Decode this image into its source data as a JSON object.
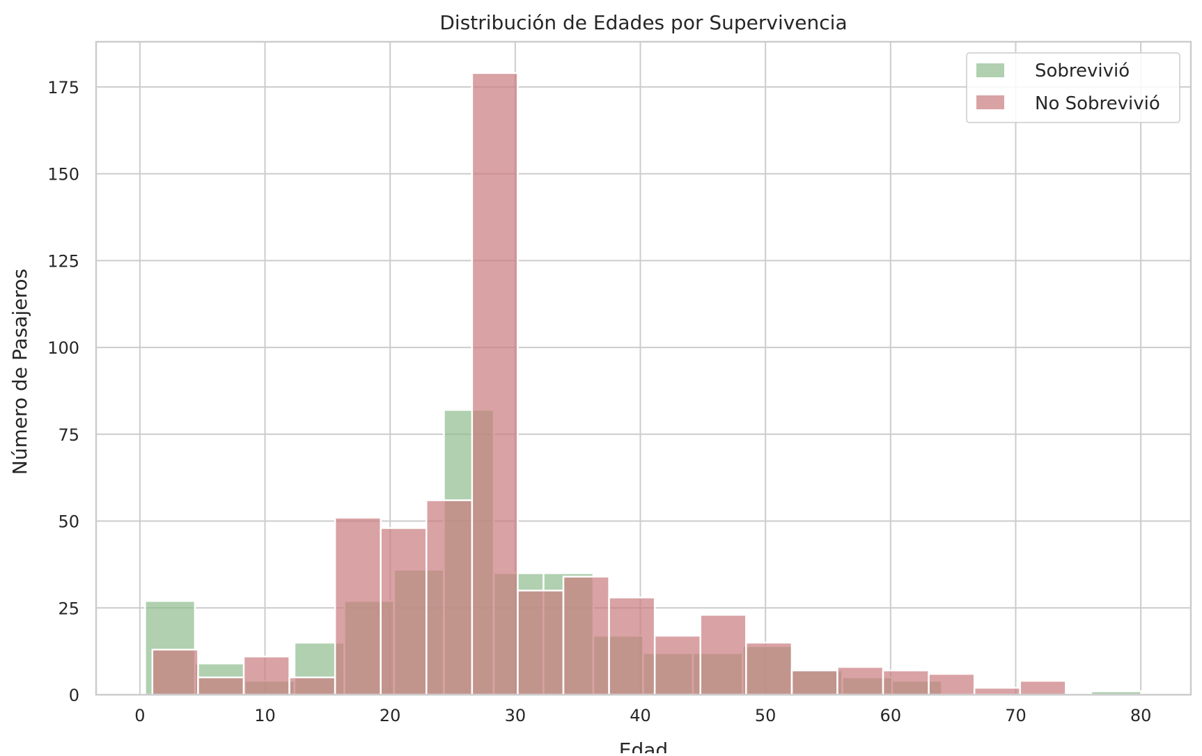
{
  "chart_data": {
    "type": "bar",
    "title": "Distribución de Edades por Supervivencia",
    "xlabel": "Edad",
    "ylabel": "Número de Pasajeros",
    "xlim": [
      -3.5,
      84
    ],
    "ylim": [
      0,
      188
    ],
    "xticks": [
      0,
      10,
      20,
      30,
      40,
      50,
      60,
      70,
      80
    ],
    "yticks": [
      0,
      25,
      50,
      75,
      100,
      125,
      150,
      175
    ],
    "grid": true,
    "legend_position": "top-right",
    "colors": {
      "survived": "#8fbc8f",
      "not_survived": "#c97a7e",
      "grid": "#cccccc",
      "spine": "#cccccc"
    },
    "series": [
      {
        "name": "Sobrevivió",
        "bins": [
          {
            "x0": 0.42,
            "x1": 4.4,
            "count": 27
          },
          {
            "x0": 4.4,
            "x1": 8.38,
            "count": 9
          },
          {
            "x0": 8.38,
            "x1": 12.36,
            "count": 4
          },
          {
            "x0": 12.36,
            "x1": 16.34,
            "count": 15
          },
          {
            "x0": 16.34,
            "x1": 20.32,
            "count": 27
          },
          {
            "x0": 20.32,
            "x1": 24.3,
            "count": 36
          },
          {
            "x0": 24.3,
            "x1": 28.28,
            "count": 82
          },
          {
            "x0": 28.28,
            "x1": 32.26,
            "count": 35
          },
          {
            "x0": 32.26,
            "x1": 36.24,
            "count": 35
          },
          {
            "x0": 36.24,
            "x1": 40.22,
            "count": 17
          },
          {
            "x0": 40.22,
            "x1": 44.2,
            "count": 12
          },
          {
            "x0": 44.2,
            "x1": 48.18,
            "count": 12
          },
          {
            "x0": 48.18,
            "x1": 52.16,
            "count": 14
          },
          {
            "x0": 52.16,
            "x1": 56.14,
            "count": 7
          },
          {
            "x0": 56.14,
            "x1": 60.12,
            "count": 5
          },
          {
            "x0": 60.12,
            "x1": 64.1,
            "count": 4
          },
          {
            "x0": 64.1,
            "x1": 68.08,
            "count": 0
          },
          {
            "x0": 68.08,
            "x1": 72.06,
            "count": 0
          },
          {
            "x0": 72.06,
            "x1": 76.04,
            "count": 0
          },
          {
            "x0": 76.04,
            "x1": 80.02,
            "count": 1
          }
        ]
      },
      {
        "name": "No Sobrevivió",
        "bins": [
          {
            "x0": 1.0,
            "x1": 4.65,
            "count": 13
          },
          {
            "x0": 4.65,
            "x1": 8.3,
            "count": 5
          },
          {
            "x0": 8.3,
            "x1": 11.95,
            "count": 11
          },
          {
            "x0": 11.95,
            "x1": 15.6,
            "count": 5
          },
          {
            "x0": 15.6,
            "x1": 19.25,
            "count": 51
          },
          {
            "x0": 19.25,
            "x1": 22.9,
            "count": 48
          },
          {
            "x0": 22.9,
            "x1": 26.55,
            "count": 56
          },
          {
            "x0": 26.55,
            "x1": 30.2,
            "count": 179
          },
          {
            "x0": 30.2,
            "x1": 33.85,
            "count": 30
          },
          {
            "x0": 33.85,
            "x1": 37.5,
            "count": 34
          },
          {
            "x0": 37.5,
            "x1": 41.15,
            "count": 28
          },
          {
            "x0": 41.15,
            "x1": 44.8,
            "count": 17
          },
          {
            "x0": 44.8,
            "x1": 48.45,
            "count": 23
          },
          {
            "x0": 48.45,
            "x1": 52.1,
            "count": 15
          },
          {
            "x0": 52.1,
            "x1": 55.75,
            "count": 7
          },
          {
            "x0": 55.75,
            "x1": 59.4,
            "count": 8
          },
          {
            "x0": 59.4,
            "x1": 63.05,
            "count": 7
          },
          {
            "x0": 63.05,
            "x1": 66.7,
            "count": 6
          },
          {
            "x0": 66.7,
            "x1": 70.35,
            "count": 2
          },
          {
            "x0": 70.35,
            "x1": 74.0,
            "count": 4
          }
        ]
      }
    ]
  }
}
